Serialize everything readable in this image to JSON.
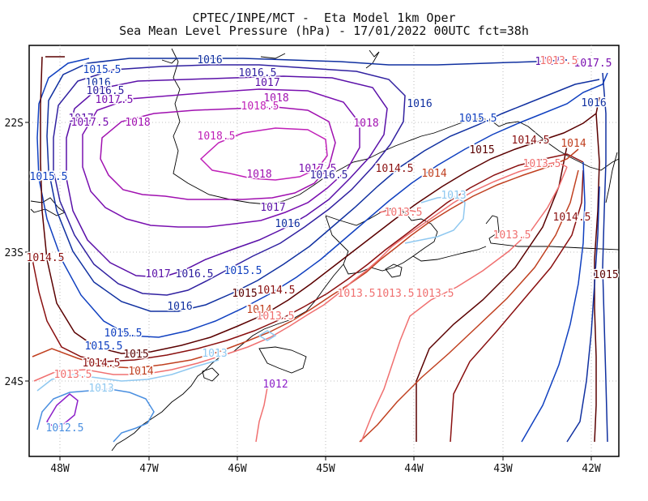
{
  "title": {
    "line1": "CPTEC/INPE/MCT -  Eta Model 1km Oper",
    "line2": "Sea Mean Level Pressure (hPa) - 17/01/2022 00UTC fct=38h"
  },
  "axes": {
    "x_ticks": [
      "48W",
      "47W",
      "46W",
      "45W",
      "44W",
      "43W",
      "42W"
    ],
    "y_ticks": [
      "22S",
      "23S",
      "24S"
    ],
    "lon_values": [
      -48,
      -47,
      -46,
      -45,
      -44,
      -43,
      -42
    ],
    "lat_values": [
      -22,
      -23,
      -24
    ]
  },
  "colors": {
    "1012": "#8c1fc8",
    "1012.5": "#4a8fe0",
    "1013": "#8fc8f0",
    "1013.5": "#f07070",
    "1014": "#c04020",
    "1014.5": "#8a1010",
    "1015": "#5a0000",
    "1015.5": "#1040c0",
    "1016": "#1030a0",
    "1016.5": "#3020a0",
    "1017": "#5a10a8",
    "1017.5": "#7a10b0",
    "1018": "#a010b0",
    "1018.5": "#c020b8",
    "coast": "#000000",
    "grid": "#aaaaaa"
  },
  "contour_labels": [
    {
      "text": "1015.5",
      "level": "1015.5"
    },
    {
      "text": "1016",
      "level": "1016"
    },
    {
      "text": "1016.5",
      "level": "1016.5"
    },
    {
      "text": "1017",
      "level": "1017"
    },
    {
      "text": "1017.5",
      "level": "1017.5"
    },
    {
      "text": "1018",
      "level": "1018"
    },
    {
      "text": "1018.5",
      "level": "1018.5"
    },
    {
      "text": "1016",
      "level": "1016"
    },
    {
      "text": "1016.5",
      "level": "1016.5"
    },
    {
      "text": "1017",
      "level": "1017"
    },
    {
      "text": "1017.5",
      "level": "1017.5"
    },
    {
      "text": "1018",
      "level": "1018"
    },
    {
      "text": "1016",
      "level": "1016"
    },
    {
      "text": "1015.5",
      "level": "1015.5"
    },
    {
      "text": "1017",
      "level": "1017"
    },
    {
      "text": "1017.5",
      "level": "1017.5"
    },
    {
      "text": "1018",
      "level": "1018"
    },
    {
      "text": "1018.5",
      "level": "1018.5"
    },
    {
      "text": "1018",
      "level": "1018"
    },
    {
      "text": "1017.5",
      "level": "1017.5"
    },
    {
      "text": "1016.5",
      "level": "1016.5"
    },
    {
      "text": "1017",
      "level": "1017"
    },
    {
      "text": "1016",
      "level": "1016"
    },
    {
      "text": "1015",
      "level": "1015"
    },
    {
      "text": "1014.5",
      "level": "1014.5"
    },
    {
      "text": "1014",
      "level": "1014"
    },
    {
      "text": "1013.5",
      "level": "1013.5"
    },
    {
      "text": "1013",
      "level": "1013"
    },
    {
      "text": "1014.5",
      "level": "1014.5"
    },
    {
      "text": "1014",
      "level": "1014"
    },
    {
      "text": "1014.5",
      "level": "1014.5"
    },
    {
      "text": "1013.5",
      "level": "1013.5"
    },
    {
      "text": "1013.5",
      "level": "1013.5"
    },
    {
      "text": "1013.5",
      "level": "1013.5"
    },
    {
      "text": "1013.5",
      "level": "1013.5"
    },
    {
      "text": "1015.5",
      "level": "1015.5"
    },
    {
      "text": "1015.5",
      "level": "1015.5"
    },
    {
      "text": "1014.5",
      "level": "1014.5"
    },
    {
      "text": "1017",
      "level": "1017"
    },
    {
      "text": "1016.5",
      "level": "1016.5"
    },
    {
      "text": "1015.5",
      "level": "1015.5"
    },
    {
      "text": "1016",
      "level": "1016"
    },
    {
      "text": "1015",
      "level": "1015"
    },
    {
      "text": "1014.5",
      "level": "1014.5"
    },
    {
      "text": "1014",
      "level": "1014"
    },
    {
      "text": "1013.5",
      "level": "1013.5"
    },
    {
      "text": "1015.5",
      "level": "1015.5"
    },
    {
      "text": "1015",
      "level": "1015"
    },
    {
      "text": "1014.5",
      "level": "1014.5"
    },
    {
      "text": "1014",
      "level": "1014"
    },
    {
      "text": "1013.5",
      "level": "1013.5"
    },
    {
      "text": "1013",
      "level": "1013"
    },
    {
      "text": "1013",
      "level": "1013"
    },
    {
      "text": "1012.5",
      "level": "1012.5"
    },
    {
      "text": "1012",
      "level": "1012"
    },
    {
      "text": "1013.5",
      "level": "1013.5"
    },
    {
      "text": "1013.5",
      "level": "1013.5"
    },
    {
      "text": "1016",
      "level": "1016"
    },
    {
      "text": "1015",
      "level": "1015"
    },
    {
      "text": "1016",
      "level": "1016"
    }
  ]
}
